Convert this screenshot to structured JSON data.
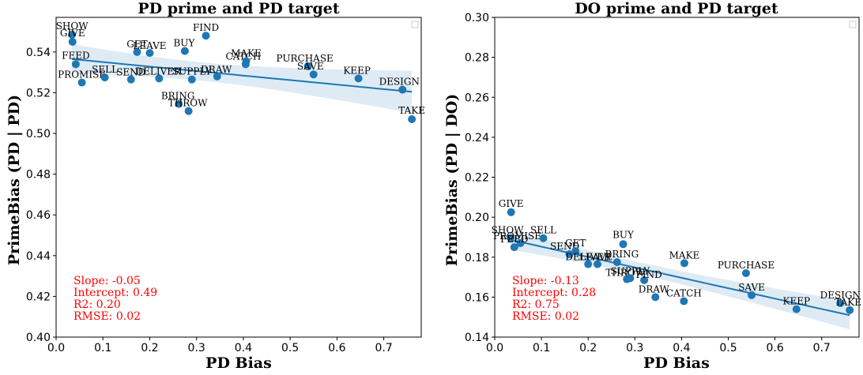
{
  "chart_data": [
    {
      "type": "scatter",
      "title": "PD prime and PD target",
      "xlabel": "PD Bias",
      "ylabel": "PrimeBias (PD | PD)",
      "xlim": [
        0.0,
        0.78
      ],
      "ylim": [
        0.4,
        0.557
      ],
      "xticks": [
        "0.0",
        "0.1",
        "0.2",
        "0.3",
        "0.4",
        "0.5",
        "0.6",
        "0.7"
      ],
      "yticks": [
        "0.40",
        "0.42",
        "0.44",
        "0.46",
        "0.48",
        "0.50",
        "0.52",
        "0.54"
      ],
      "grid": false,
      "legend": "top-right",
      "fit": {
        "slope": -0.05,
        "intercept": 0.49
      },
      "stats": [
        "Slope: -0.05",
        "Intercept: 0.49",
        "R2: 0.20",
        "RMSE: 0.02"
      ],
      "point_color": "#1f77b4",
      "line_color": "#1f77b4",
      "stats_color": "#ff0000",
      "points": [
        {
          "label": "SHOW",
          "x": 0.034,
          "y": 0.5485
        },
        {
          "label": "GIVE",
          "x": 0.035,
          "y": 0.545
        },
        {
          "label": "FEED",
          "x": 0.042,
          "y": 0.534
        },
        {
          "label": "PROMISE",
          "x": 0.055,
          "y": 0.525
        },
        {
          "label": "SELL",
          "x": 0.104,
          "y": 0.5275
        },
        {
          "label": "SEND",
          "x": 0.16,
          "y": 0.5265
        },
        {
          "label": "GET",
          "x": 0.173,
          "y": 0.54
        },
        {
          "label": "LEAVE",
          "x": 0.2,
          "y": 0.5395
        },
        {
          "label": "DELIVER",
          "x": 0.22,
          "y": 0.527
        },
        {
          "label": "BUY",
          "x": 0.275,
          "y": 0.5405
        },
        {
          "label": "BRING",
          "x": 0.262,
          "y": 0.5145
        },
        {
          "label": "THROW",
          "x": 0.283,
          "y": 0.511
        },
        {
          "label": "SUPPLY",
          "x": 0.29,
          "y": 0.5265
        },
        {
          "label": "FIND",
          "x": 0.32,
          "y": 0.548
        },
        {
          "label": "DRAW",
          "x": 0.344,
          "y": 0.528
        },
        {
          "label": "CATCH",
          "x": 0.405,
          "y": 0.534
        },
        {
          "label": "MAKE",
          "x": 0.406,
          "y": 0.5355
        },
        {
          "label": "PURCHASE",
          "x": 0.538,
          "y": 0.533
        },
        {
          "label": "SAVE",
          "x": 0.55,
          "y": 0.529
        },
        {
          "label": "KEEP",
          "x": 0.646,
          "y": 0.527
        },
        {
          "label": "DESIGN",
          "x": 0.74,
          "y": 0.5215
        },
        {
          "label": "TAKE",
          "x": 0.76,
          "y": 0.507
        }
      ]
    },
    {
      "type": "scatter",
      "title": "DO prime and PD target",
      "xlabel": "PD Bias",
      "ylabel": "PrimeBias (PD | DO)",
      "xlim": [
        0.0,
        0.78
      ],
      "ylim": [
        0.14,
        0.3
      ],
      "xticks": [
        "0.0",
        "0.1",
        "0.2",
        "0.3",
        "0.4",
        "0.5",
        "0.6",
        "0.7"
      ],
      "yticks": [
        "0.14",
        "0.16",
        "0.18",
        "0.20",
        "0.22",
        "0.24",
        "0.26",
        "0.28",
        "0.30"
      ],
      "grid": false,
      "legend": "top-right",
      "fit": {
        "slope": -0.13,
        "intercept": 0.28
      },
      "stats": [
        "Slope: -0.13",
        "Intercept: 0.28",
        "R2: 0.75",
        "RMSE: 0.02"
      ],
      "point_color": "#1f77b4",
      "line_color": "#1f77b4",
      "stats_color": "#ff0000",
      "points": [
        {
          "label": "GIVE",
          "x": 0.035,
          "y": 0.2025
        },
        {
          "label": "SHOW",
          "x": 0.034,
          "y": 0.1895
        },
        {
          "label": "PROMISE",
          "x": 0.055,
          "y": 0.187
        },
        {
          "label": "FEED",
          "x": 0.042,
          "y": 0.185
        },
        {
          "label": "SELL",
          "x": 0.104,
          "y": 0.1895
        },
        {
          "label": "SEND",
          "x": 0.16,
          "y": 0.1815
        },
        {
          "label": "GET",
          "x": 0.173,
          "y": 0.183
        },
        {
          "label": "DELIVER",
          "x": 0.2,
          "y": 0.1765
        },
        {
          "label": "LEAVE",
          "x": 0.22,
          "y": 0.1765
        },
        {
          "label": "BRING",
          "x": 0.262,
          "y": 0.1775
        },
        {
          "label": "BUY",
          "x": 0.275,
          "y": 0.1865
        },
        {
          "label": "THROW",
          "x": 0.283,
          "y": 0.169
        },
        {
          "label": "SUPPLY",
          "x": 0.29,
          "y": 0.1695
        },
        {
          "label": "FIND",
          "x": 0.32,
          "y": 0.1685
        },
        {
          "label": "DRAW",
          "x": 0.344,
          "y": 0.16
        },
        {
          "label": "MAKE",
          "x": 0.406,
          "y": 0.177
        },
        {
          "label": "CATCH",
          "x": 0.405,
          "y": 0.158
        },
        {
          "label": "PURCHASE",
          "x": 0.538,
          "y": 0.172
        },
        {
          "label": "SAVE",
          "x": 0.55,
          "y": 0.161
        },
        {
          "label": "KEEP",
          "x": 0.646,
          "y": 0.154
        },
        {
          "label": "DESIGN",
          "x": 0.74,
          "y": 0.157
        },
        {
          "label": "TAKE",
          "x": 0.76,
          "y": 0.1535
        }
      ]
    }
  ]
}
